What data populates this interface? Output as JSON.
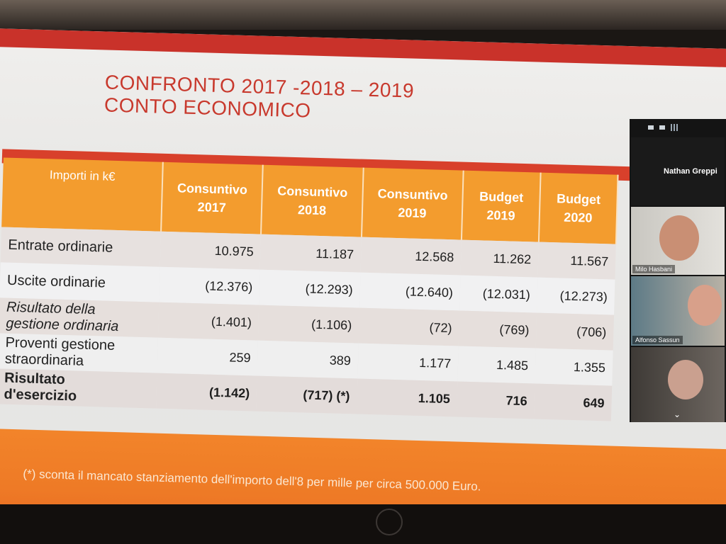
{
  "slide": {
    "title_line1": "CONFRONTO 2017 -2018 – 2019",
    "title_line2": "CONTO ECONOMICO",
    "table": {
      "headers": [
        [
          "Importi in k€"
        ],
        [
          "Consuntivo",
          "2017"
        ],
        [
          "Consuntivo",
          "2018"
        ],
        [
          "Consuntivo",
          "2019"
        ],
        [
          "Budget",
          "2019"
        ],
        [
          "Budget",
          "2020"
        ]
      ],
      "rows": [
        {
          "label": [
            "Entrate ordinarie"
          ],
          "values": [
            "10.975",
            "11.187",
            "12.568",
            "11.262",
            "11.567"
          ]
        },
        {
          "label": [
            "Uscite ordinarie"
          ],
          "values": [
            "(12.376)",
            "(12.293)",
            "(12.640)",
            "(12.031)",
            "(12.273)"
          ]
        },
        {
          "label": [
            "Risultato della",
            "gestione ordinaria"
          ],
          "values": [
            "(1.401)",
            "(1.106)",
            "(72)",
            "(769)",
            "(706)"
          ]
        },
        {
          "label": [
            "Proventi gestione",
            "straordinaria"
          ],
          "values": [
            "259",
            "389",
            "1.177",
            "1.485",
            "1.355"
          ]
        },
        {
          "label": [
            "Risultato",
            "d'esercizio"
          ],
          "values": [
            "(1.142)",
            "(717) (*)",
            "1.105",
            "716",
            "649"
          ]
        }
      ]
    },
    "footnote": "(*) sconta il mancato stanziamento dell'importo dell'8 per mille per circa 500.000 Euro."
  },
  "video_gallery": {
    "participants": [
      "Nathan Greppi",
      "Milo Hasbani",
      "Alfonso Sassun"
    ]
  },
  "device": {
    "logo": "hp"
  }
}
